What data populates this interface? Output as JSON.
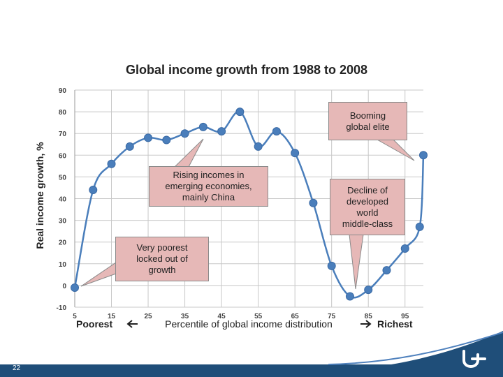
{
  "slide": {
    "page_number": "22",
    "logo_icon": "belgian-federal-logo-icon",
    "footer_color": "#1f4e79"
  },
  "chart_data": {
    "type": "line",
    "title": "Global income growth from 1988 to 2008",
    "xlabel": "Percentile of global income distribution",
    "x_left_label": "Poorest",
    "x_right_label": "Richest",
    "ylabel": "Real income growth, %",
    "x_ticks": [
      5,
      15,
      25,
      35,
      45,
      55,
      65,
      75,
      85,
      95
    ],
    "y_ticks": [
      -10,
      0,
      10,
      20,
      30,
      40,
      50,
      60,
      70,
      80,
      90
    ],
    "xlim": [
      5,
      100
    ],
    "ylim": [
      -10,
      90
    ],
    "grid": true,
    "series": [
      {
        "color": "#4a7ebb",
        "x": [
          5,
          10,
          15,
          20,
          25,
          30,
          35,
          40,
          45,
          50,
          55,
          60,
          65,
          70,
          75,
          80,
          85,
          90,
          95,
          99,
          100
        ],
        "y": [
          -1,
          44,
          56,
          64,
          68,
          67,
          70,
          73,
          71,
          80,
          64,
          71,
          61,
          38,
          9,
          -5,
          -2,
          7,
          17,
          27,
          60
        ]
      }
    ],
    "annotations": [
      {
        "text": "Booming\nglobal elite"
      },
      {
        "text": "Rising incomes in\nemerging economies,\nmainly China"
      },
      {
        "text": "Decline of\ndeveloped\nworld\nmiddle-class"
      },
      {
        "text": "Very poorest\nlocked out of\ngrowth"
      }
    ]
  }
}
